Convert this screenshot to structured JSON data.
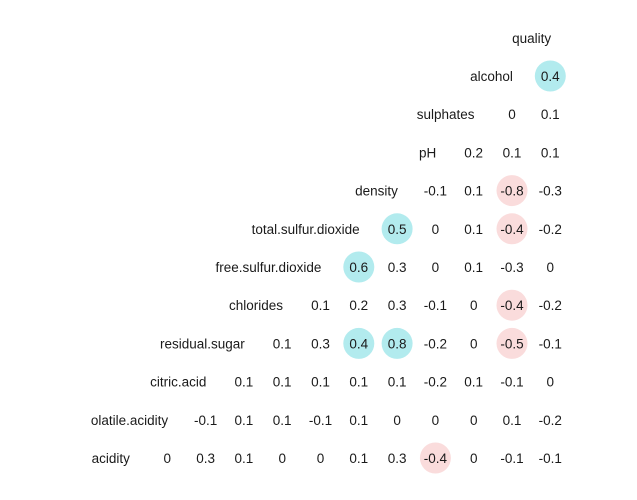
{
  "chart_data": {
    "type": "heatmap",
    "variables": [
      "acidity",
      "olatile.acidity",
      "citric.acid",
      "residual.sugar",
      "chlorides",
      "free.sulfur.dioxide",
      "total.sulfur.dioxide",
      "density",
      "pH",
      "sulphates",
      "alcohol",
      "quality"
    ],
    "rows": [
      {
        "label": "acidity",
        "values": [
          "0",
          "0.3",
          "0.1",
          "0",
          "0",
          "0.1",
          "0.3",
          "-0.4",
          "0",
          "-0.1",
          "-0.1"
        ]
      },
      {
        "label": "olatile.acidity",
        "values": [
          "-0.1",
          "0.1",
          "0.1",
          "-0.1",
          "0.1",
          "0",
          "0",
          "0",
          "0.1",
          "-0.2"
        ]
      },
      {
        "label": "citric.acid",
        "values": [
          "0.1",
          "0.1",
          "0.1",
          "0.1",
          "0.1",
          "-0.2",
          "0.1",
          "-0.1",
          "0"
        ]
      },
      {
        "label": "residual.sugar",
        "values": [
          "0.1",
          "0.3",
          "0.4",
          "0.8",
          "-0.2",
          "0",
          "-0.5",
          "-0.1"
        ]
      },
      {
        "label": "chlorides",
        "values": [
          "0.1",
          "0.2",
          "0.3",
          "-0.1",
          "0",
          "-0.4",
          "-0.2"
        ]
      },
      {
        "label": "free.sulfur.dioxide",
        "values": [
          "0.6",
          "0.3",
          "0",
          "0.1",
          "-0.3",
          "0"
        ]
      },
      {
        "label": "total.sulfur.dioxide",
        "values": [
          "0.5",
          "0",
          "0.1",
          "-0.4",
          "-0.2"
        ]
      },
      {
        "label": "density",
        "values": [
          "-0.1",
          "0.1",
          "-0.8",
          "-0.3"
        ]
      },
      {
        "label": "pH",
        "values": [
          "0.2",
          "0.1",
          "0.1"
        ]
      },
      {
        "label": "sulphates",
        "values": [
          "0",
          "0.1"
        ]
      },
      {
        "label": "alcohol",
        "values": [
          "0.4"
        ]
      },
      {
        "label": "quality",
        "values": []
      }
    ],
    "highlight_threshold": 0.4,
    "colors": {
      "positive": "#b2ebee",
      "negative": "#fadcdc",
      "text": "#1a1a1a",
      "background": "#ffffff"
    },
    "title": "",
    "xlabel": "",
    "ylabel": ""
  }
}
